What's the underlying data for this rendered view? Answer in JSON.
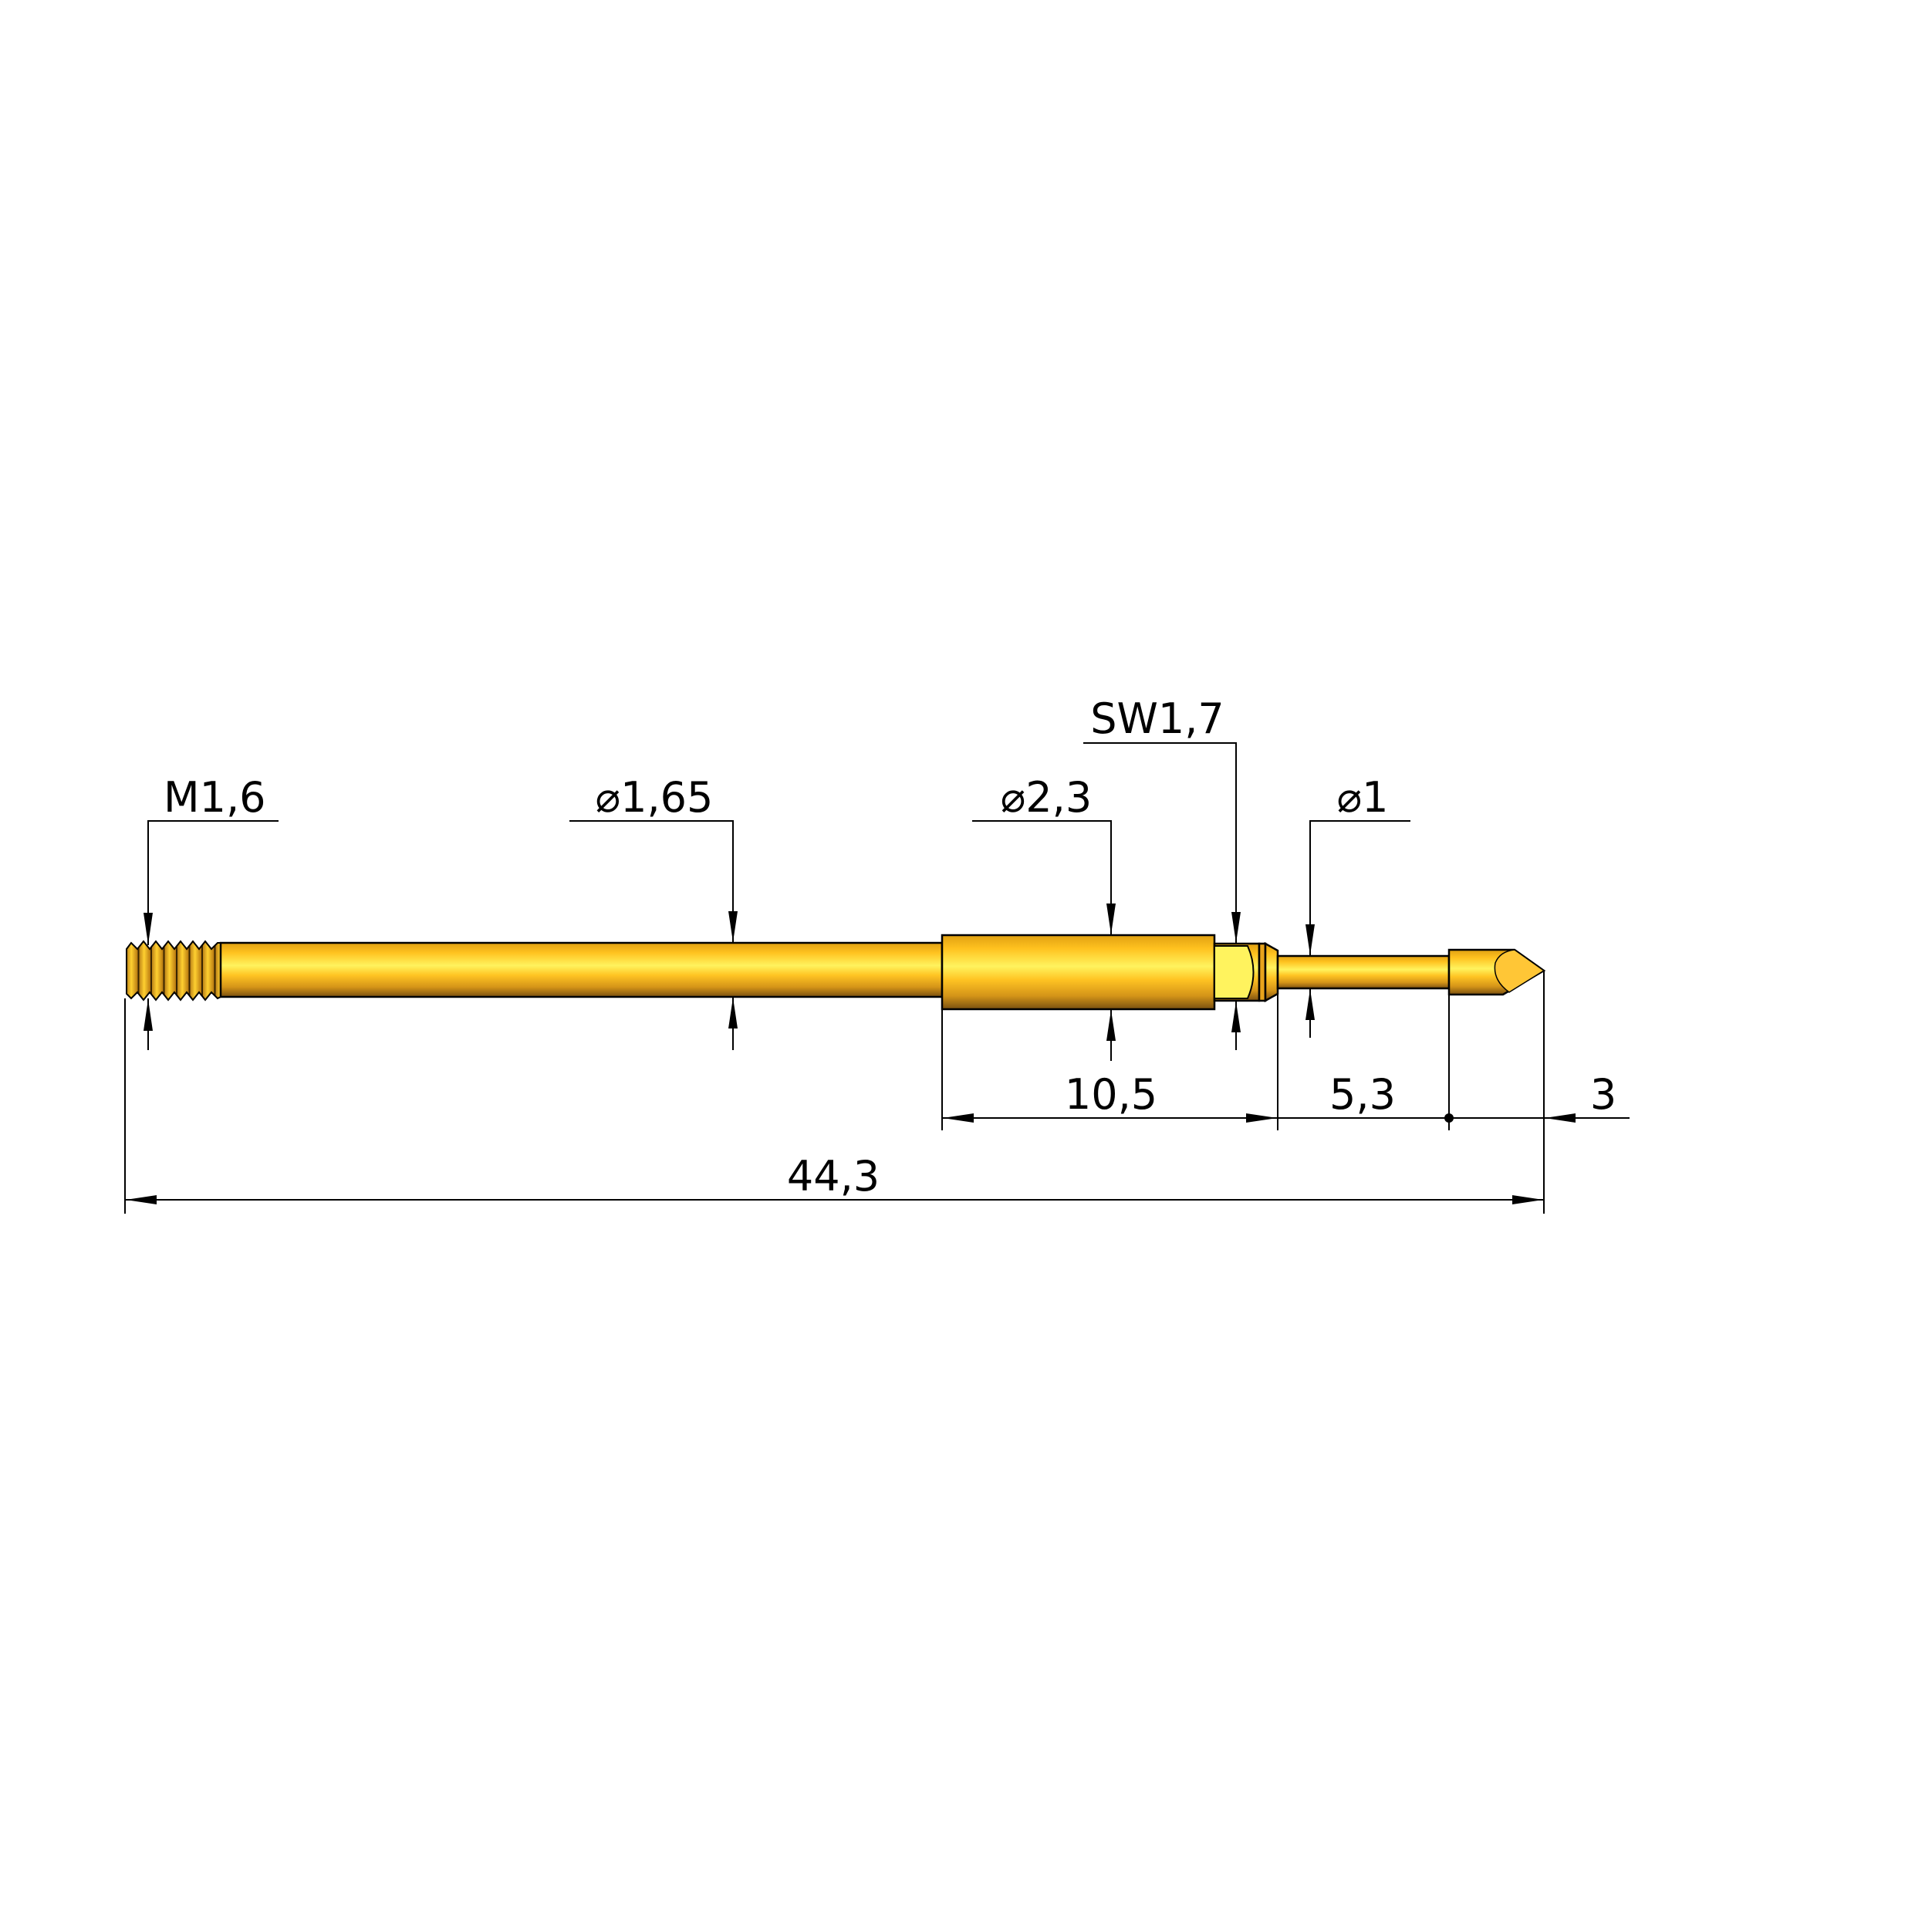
{
  "drawing": {
    "part_color": "#FFC21F",
    "dimensions": {
      "thread": "M1,6",
      "shaft_diameter": "⌀1,65",
      "barrel_diameter": "⌀2,3",
      "hex_size": "SW1,7",
      "plunger_diameter": "⌀1",
      "barrel_to_collar_length": "10,5",
      "plunger_length": "5,3",
      "tip_length": "3",
      "overall_length": "44,3"
    }
  }
}
